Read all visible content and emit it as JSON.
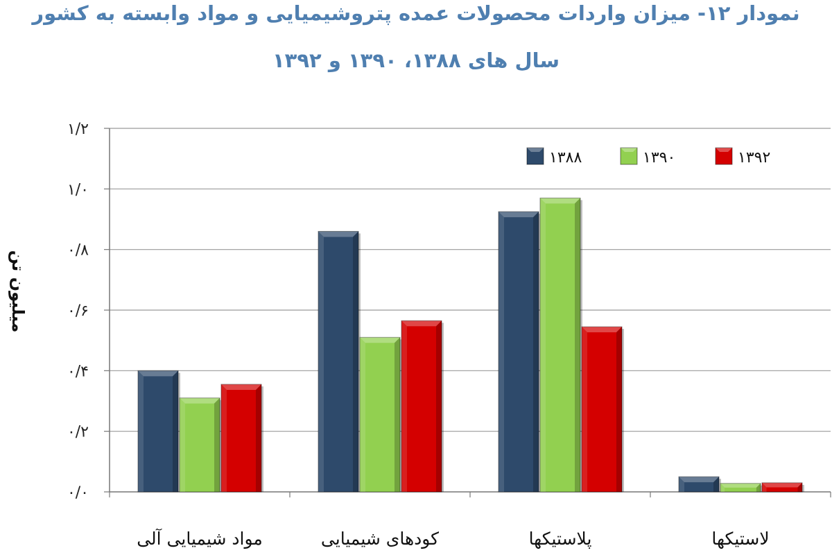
{
  "chart_data": {
    "type": "bar",
    "title_line1": "نمودار ۱۲- میزان واردات محصولات عمده پتروشیمیایی و مواد وابسته به کشور",
    "title_line2": "سال های ۱۳۸۸، ۱۳۹۰ و ۱۳۹۲",
    "ylabel": "میلیون تن",
    "xlabel": "",
    "ylim": [
      0,
      1.2
    ],
    "yticks": [
      0,
      0.2,
      0.4,
      0.6,
      0.8,
      1.0,
      1.2
    ],
    "ytick_labels": [
      "۰/۰",
      "۰/۲",
      "۰/۴",
      "۰/۶",
      "۰/۸",
      "۱/۰",
      "۱/۲"
    ],
    "grid": true,
    "legend_position": "top-right",
    "categories": [
      "مواد شیمیایی آلی",
      "کودهای شیمیایی",
      "پلاستیکها",
      "لاستیکها"
    ],
    "series": [
      {
        "name": "۱۳۸۸",
        "color": "#2e4a6b",
        "values": [
          0.4,
          0.86,
          0.925,
          0.05
        ]
      },
      {
        "name": "۱۳۹۰",
        "color": "#92d050",
        "values": [
          0.31,
          0.51,
          0.97,
          0.028
        ]
      },
      {
        "name": "۱۳۹۲",
        "color": "#d40000",
        "values": [
          0.355,
          0.565,
          0.545,
          0.03
        ]
      }
    ]
  }
}
